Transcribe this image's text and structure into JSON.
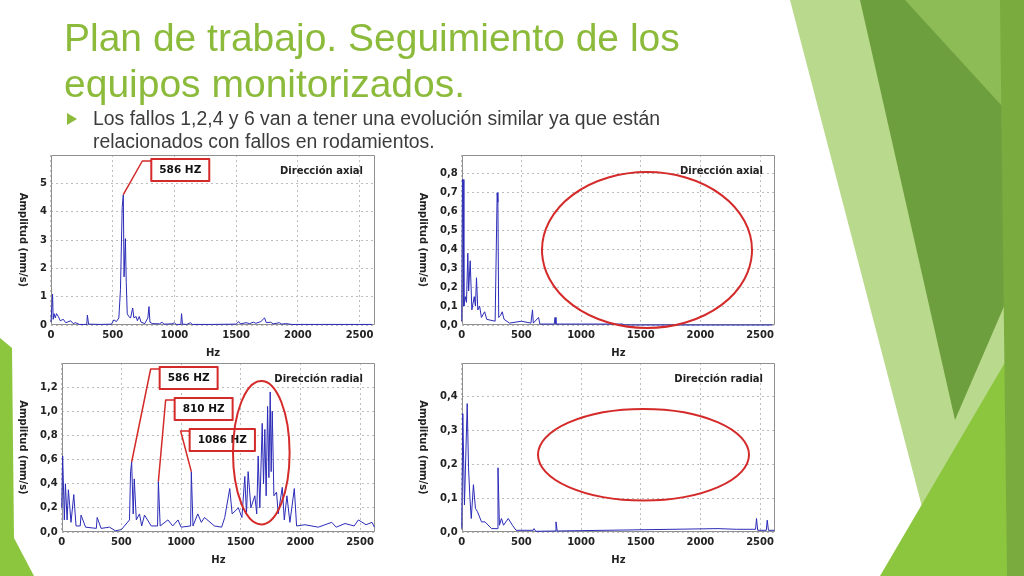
{
  "chart_data": [
    {
      "type": "other",
      "title": "Plan de trabajo. Seguimiento de los equipos monitorizados.",
      "subtitle": "Los fallos 1,2,4 y 6 van a tener una evolución similar ya que están relacionados con fallos en rodamientos."
    },
    {
      "type": "line",
      "title": "Dirección axial",
      "xlabel": "Hz",
      "ylabel": "Amplitud (mm/s)",
      "color": "#2b2bb8",
      "x": [
        0,
        13,
        18,
        25,
        35,
        45,
        60,
        75,
        100,
        120,
        160,
        180,
        200,
        230,
        290,
        295,
        305,
        400,
        490,
        510,
        530,
        550,
        563,
        577,
        586,
        592,
        603,
        610,
        618,
        630,
        645,
        662,
        672,
        690,
        700,
        715,
        730,
        760,
        785,
        794,
        802,
        820,
        880,
        900,
        915,
        980,
        1000,
        1015,
        1052,
        1058,
        1065,
        1100,
        1130,
        1145,
        1300,
        1500,
        1520,
        1535,
        1580,
        1610,
        1640,
        1660,
        1700,
        1730,
        1745,
        1780,
        1800,
        1850,
        1870,
        1900,
        1950,
        2200,
        2500,
        2600
      ],
      "values": [
        0.1,
        1.09,
        0.2,
        0.4,
        0.25,
        0.4,
        0.3,
        0.15,
        0.2,
        0.08,
        0.15,
        0.05,
        0.08,
        0.02,
        0.02,
        0.35,
        0.03,
        0.02,
        0.03,
        0.18,
        0.12,
        0.25,
        1.25,
        4.15,
        4.6,
        1.7,
        3.05,
        1.5,
        0.4,
        0.3,
        0.25,
        0.6,
        0.25,
        0.3,
        0.15,
        0.3,
        0.1,
        0.05,
        0.25,
        0.65,
        0.1,
        0.05,
        0.04,
        0.1,
        0.03,
        0.04,
        0.08,
        0.02,
        0.02,
        0.4,
        0.03,
        0.02,
        0.08,
        0.02,
        0.02,
        0.03,
        0.12,
        0.04,
        0.08,
        0.05,
        0.1,
        0.06,
        0.12,
        0.25,
        0.08,
        0.1,
        0.04,
        0.08,
        0.03,
        0.05,
        0.02,
        0.02,
        0.02,
        0.02
      ],
      "xlim": [
        0,
        2625
      ],
      "xticks": [
        0,
        500,
        1000,
        1500,
        2000,
        2500
      ],
      "ylim": [
        0,
        6
      ],
      "yticks": [
        0,
        1,
        2,
        3,
        4,
        5
      ],
      "grid": true,
      "annotations": [
        {
          "text": "586 HZ",
          "x": 586,
          "y": 4.6
        }
      ]
    },
    {
      "type": "line",
      "title": "Dirección axial",
      "xlabel": "Hz",
      "ylabel": "Amplitud (mm/s)",
      "color": "#2b2bb8",
      "x": [
        0,
        6,
        12,
        18,
        30,
        40,
        51,
        58,
        71,
        85,
        105,
        115,
        124,
        135,
        150,
        165,
        192,
        210,
        280,
        297,
        303,
        310,
        325,
        339,
        355,
        400,
        500,
        580,
        593,
        600,
        644,
        655,
        775,
        782,
        790,
        1000,
        1350,
        1360,
        2600
      ],
      "values": [
        0.02,
        0.77,
        0.77,
        0.1,
        0.15,
        0.12,
        0.38,
        0.18,
        0.34,
        0.08,
        0.15,
        0.1,
        0.25,
        0.08,
        0.1,
        0.04,
        0.07,
        0.03,
        0.02,
        0.7,
        0.65,
        0.04,
        0.05,
        0.07,
        0.03,
        0.01,
        0.02,
        0.01,
        0.08,
        0.01,
        0.04,
        0.005,
        0.005,
        0.04,
        0.005,
        0.005,
        0.005,
        0,
        0
      ],
      "xlim": [
        0,
        2625
      ],
      "xticks": [
        0,
        500,
        1000,
        1500,
        2000,
        2500
      ],
      "ylim": [
        0,
        0.9
      ],
      "yticks": [
        {
          "value": 0,
          "label": "0,0"
        },
        {
          "value": 0.1,
          "label": "0,1"
        },
        {
          "value": 0.2,
          "label": "0,2"
        },
        {
          "value": 0.3,
          "label": "0,3"
        },
        {
          "value": 0.4,
          "label": "0,4"
        },
        {
          "value": 0.5,
          "label": "0,5"
        },
        {
          "value": 0.6,
          "label": "0,6"
        },
        {
          "value": 0.7,
          "label": "0,7"
        },
        {
          "value": 0.8,
          "label": "0,8"
        }
      ],
      "grid": true
    },
    {
      "type": "line",
      "title": "Dirección radial",
      "xlabel": "Hz",
      "ylabel": "Amplitud (mm/s)",
      "color": "#2b2bb8",
      "x": [
        0,
        8,
        22,
        31,
        45,
        56,
        78,
        101,
        120,
        155,
        162,
        200,
        290,
        297,
        330,
        400,
        450,
        500,
        568,
        577,
        586,
        599,
        608,
        625,
        652,
        670,
        694,
        750,
        803,
        810,
        825,
        890,
        930,
        974,
        1000,
        1080,
        1086,
        1100,
        1140,
        1170,
        1196,
        1280,
        1340,
        1366,
        1408,
        1428,
        1480,
        1510,
        1534,
        1548,
        1562,
        1585,
        1618,
        1634,
        1646,
        1660,
        1680,
        1691,
        1702,
        1713,
        1725,
        1736,
        1747,
        1755,
        1764,
        1778,
        1800,
        1814,
        1848,
        1865,
        1887,
        1912,
        1949,
        1968,
        2038,
        2150,
        2262,
        2300,
        2374,
        2450,
        2486,
        2550,
        2600,
        2620
      ],
      "values": [
        0.2,
        0.63,
        0.1,
        0.4,
        0.1,
        0.35,
        0.08,
        0.31,
        0.05,
        0.05,
        0.14,
        0.04,
        0.03,
        0.12,
        0.03,
        0.04,
        0.01,
        0.02,
        0.1,
        0.5,
        0.58,
        0.15,
        0.44,
        0.1,
        0.15,
        0.05,
        0.14,
        0.05,
        0.05,
        0.42,
        0.05,
        0.1,
        0.05,
        0.1,
        0.04,
        0.05,
        0.5,
        0.05,
        0.15,
        0.08,
        0.12,
        0.05,
        0.04,
        0.12,
        0.36,
        0.15,
        0.2,
        0.12,
        0.46,
        0.15,
        0.5,
        0.2,
        0.3,
        0.15,
        0.63,
        0.2,
        0.9,
        0.4,
        0.85,
        0.3,
        1.04,
        0.45,
        1.16,
        0.5,
        1.0,
        0.3,
        0.33,
        0.15,
        0.37,
        0.1,
        0.3,
        0.08,
        0.36,
        0.05,
        0.06,
        0.04,
        0.08,
        0.04,
        0.07,
        0.05,
        0.1,
        0.06,
        0.08,
        0.04
      ],
      "xlim": [
        0,
        2625
      ],
      "xticks": [
        0,
        500,
        1000,
        1500,
        2000,
        2500
      ],
      "ylim": [
        0,
        1.4
      ],
      "yticks": [
        {
          "value": 0,
          "label": "0,0"
        },
        {
          "value": 0.2,
          "label": "0,2"
        },
        {
          "value": 0.4,
          "label": "0,4"
        },
        {
          "value": 0.6,
          "label": "0,6"
        },
        {
          "value": 0.8,
          "label": "0,8"
        },
        {
          "value": 1,
          "label": "1,0"
        },
        {
          "value": 1.2,
          "label": "1,2"
        }
      ],
      "grid": true,
      "annotations": [
        {
          "text": "586 HZ",
          "x": 586,
          "y": 0.58
        },
        {
          "text": "810 HZ",
          "x": 810,
          "y": 0.42
        },
        {
          "text": "1086 HZ",
          "x": 1086,
          "y": 0.5
        }
      ]
    },
    {
      "type": "line",
      "title": "Dirección radial",
      "xlabel": "Hz",
      "ylabel": "Amplitud (mm/s)",
      "color": "#2b2bb8",
      "x": [
        0,
        9,
        23,
        46,
        57,
        69,
        80,
        98,
        115,
        132,
        166,
        195,
        250,
        297,
        304,
        316,
        333,
        350,
        390,
        425,
        455,
        600,
        606,
        620,
        783,
        790,
        800,
        1200,
        2147,
        2300,
        2462,
        2470,
        2480,
        2552,
        2560,
        2570,
        2620
      ],
      "values": [
        0.01,
        0.35,
        0.08,
        0.38,
        0.19,
        0.1,
        0.04,
        0.14,
        0.07,
        0.06,
        0.03,
        0.03,
        0.01,
        0.01,
        0.19,
        0.02,
        0.04,
        0.02,
        0.04,
        0.02,
        0.005,
        0.005,
        0.01,
        0.002,
        0.003,
        0.03,
        0.003,
        0.005,
        0.01,
        0.008,
        0.008,
        0.04,
        0.005,
        0.005,
        0.035,
        0.005,
        0.005
      ],
      "xlim": [
        0,
        2625
      ],
      "xticks": [
        0,
        500,
        1000,
        1500,
        2000,
        2500
      ],
      "ylim": [
        0,
        0.5
      ],
      "yticks": [
        {
          "value": 0,
          "label": "0,0"
        },
        {
          "value": 0.1,
          "label": "0,1"
        },
        {
          "value": 0.2,
          "label": "0,2"
        },
        {
          "value": 0.3,
          "label": "0,3"
        },
        {
          "value": 0.4,
          "label": "0,4"
        }
      ],
      "grid": true
    }
  ]
}
